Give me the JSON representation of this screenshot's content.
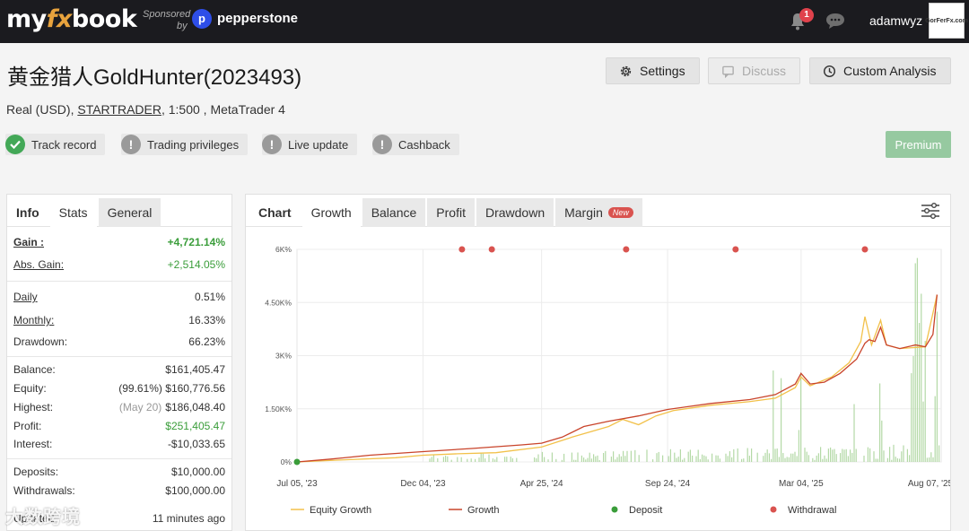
{
  "topbar": {
    "logo_prefix": "my",
    "logo_fx": "fx",
    "logo_suffix": "book",
    "sponsored": "Sponsored",
    "sponsored_by": "by",
    "sponsor_icon": "p",
    "sponsor_name": "pepperstone",
    "notifications_count": "1",
    "username": "adamwyz",
    "avatar_text": "GorFerFx.com"
  },
  "header": {
    "title": "黄金猎人GoldHunter(2023493)",
    "settings_label": "Settings",
    "discuss_label": "Discuss",
    "custom_label": "Custom Analysis",
    "account_prefix": "Real (USD),",
    "broker": "STARTRADER",
    "account_suffix": ", 1:500 , MetaTrader 4",
    "badges": {
      "track": "Track record",
      "priv": "Trading privileges",
      "live": "Live update",
      "cash": "Cashback"
    },
    "premium_label": "Premium"
  },
  "left_tabs": {
    "info": "Info",
    "stats": "Stats",
    "general": "General"
  },
  "stats": {
    "gain_k": "Gain :",
    "gain_v": "+4,721.14%",
    "abs_k": "Abs. Gain:",
    "abs_v": "+2,514.05%",
    "daily_k": "Daily",
    "daily_v": "0.51%",
    "monthly_k": "Monthly:",
    "monthly_v": "16.33%",
    "dd_k": "Drawdown:",
    "dd_v": "66.23%",
    "bal_k": "Balance:",
    "bal_v": "$161,405.47",
    "eq_k": "Equity:",
    "eq_note": "(99.61%)",
    "eq_v": "$160,776.56",
    "hi_k": "Highest:",
    "hi_note": "(May 20)",
    "hi_v": "$186,048.40",
    "pr_k": "Profit:",
    "pr_v": "$251,405.47",
    "in_k": "Interest:",
    "in_v": "-$10,033.65",
    "dep_k": "Deposits:",
    "dep_v": "$10,000.00",
    "wd_k": "Withdrawals:",
    "wd_v": "$100,000.00",
    "upd_k": "Updated",
    "upd_v": "11 minutes ago"
  },
  "right_tabs": {
    "chart": "Chart",
    "growth": "Growth",
    "balance": "Balance",
    "profit": "Profit",
    "drawdown": "Drawdown",
    "margin": "Margin",
    "new": "New"
  },
  "watermark": "大数跨境",
  "colors": {
    "equity": "#f2c14a",
    "growth": "#c9442b",
    "deposit": "#3a9d3a",
    "withdrawal": "#d9534f",
    "volume": "#b4d9a6"
  },
  "chart_data": {
    "type": "line",
    "x_ticks": [
      "Jul 05, '23",
      "Dec 04, '23",
      "Apr 25, '24",
      "Sep 24, '24",
      "Mar 04, '25",
      "Aug 07, '25"
    ],
    "y_ticks": [
      "0%",
      "1.50K%",
      "3K%",
      "4.50K%",
      "6K%"
    ],
    "ylim": [
      0,
      6000
    ],
    "x_range": [
      "2023-07-05",
      "2025-08-20"
    ],
    "legend": [
      "Equity Growth",
      "Growth",
      "Deposit",
      "Withdrawal"
    ],
    "grid": true,
    "series": [
      {
        "name": "Growth",
        "points": [
          [
            "2023-07-05",
            0
          ],
          [
            "2023-08-15",
            80
          ],
          [
            "2023-10-01",
            190
          ],
          [
            "2023-12-04",
            290
          ],
          [
            "2024-02-01",
            380
          ],
          [
            "2024-04-01",
            480
          ],
          [
            "2024-04-25",
            530
          ],
          [
            "2024-05-20",
            700
          ],
          [
            "2024-06-15",
            1000
          ],
          [
            "2024-07-15",
            1150
          ],
          [
            "2024-08-20",
            1300
          ],
          [
            "2024-09-24",
            1480
          ],
          [
            "2024-11-15",
            1650
          ],
          [
            "2025-01-01",
            1760
          ],
          [
            "2025-02-01",
            1900
          ],
          [
            "2025-02-25",
            2200
          ],
          [
            "2025-03-04",
            2500
          ],
          [
            "2025-03-15",
            2200
          ],
          [
            "2025-04-01",
            2250
          ],
          [
            "2025-04-20",
            2500
          ],
          [
            "2025-05-10",
            2900
          ],
          [
            "2025-05-20",
            3350
          ],
          [
            "2025-05-25",
            3450
          ],
          [
            "2025-06-01",
            3400
          ],
          [
            "2025-06-08",
            3800
          ],
          [
            "2025-06-15",
            3300
          ],
          [
            "2025-07-01",
            3200
          ],
          [
            "2025-07-20",
            3300
          ],
          [
            "2025-08-01",
            3250
          ],
          [
            "2025-08-10",
            3600
          ],
          [
            "2025-08-15",
            4721
          ]
        ]
      },
      {
        "name": "Equity Growth",
        "points": [
          [
            "2023-07-05",
            0
          ],
          [
            "2023-09-01",
            60
          ],
          [
            "2023-11-01",
            120
          ],
          [
            "2023-12-04",
            190
          ],
          [
            "2024-01-15",
            230
          ],
          [
            "2024-03-01",
            260
          ],
          [
            "2024-04-25",
            420
          ],
          [
            "2024-06-01",
            700
          ],
          [
            "2024-07-15",
            1000
          ],
          [
            "2024-08-01",
            1200
          ],
          [
            "2024-08-20",
            1050
          ],
          [
            "2024-09-10",
            1300
          ],
          [
            "2024-10-01",
            1450
          ],
          [
            "2024-11-15",
            1600
          ],
          [
            "2024-12-31",
            1700
          ],
          [
            "2025-02-01",
            1800
          ],
          [
            "2025-02-25",
            2100
          ],
          [
            "2025-03-04",
            2400
          ],
          [
            "2025-03-15",
            2150
          ],
          [
            "2025-04-10",
            2400
          ],
          [
            "2025-05-01",
            2800
          ],
          [
            "2025-05-15",
            3400
          ],
          [
            "2025-05-20",
            4100
          ],
          [
            "2025-05-28",
            3300
          ],
          [
            "2025-06-08",
            4000
          ],
          [
            "2025-06-15",
            3300
          ],
          [
            "2025-07-01",
            3200
          ],
          [
            "2025-08-01",
            3250
          ],
          [
            "2025-08-15",
            4721
          ]
        ]
      }
    ],
    "deposits": [
      [
        "2023-07-05",
        0
      ]
    ],
    "withdrawals": [
      "2024-01-20",
      "2024-02-25",
      "2024-08-05",
      "2024-12-15",
      "2025-05-20"
    ]
  }
}
